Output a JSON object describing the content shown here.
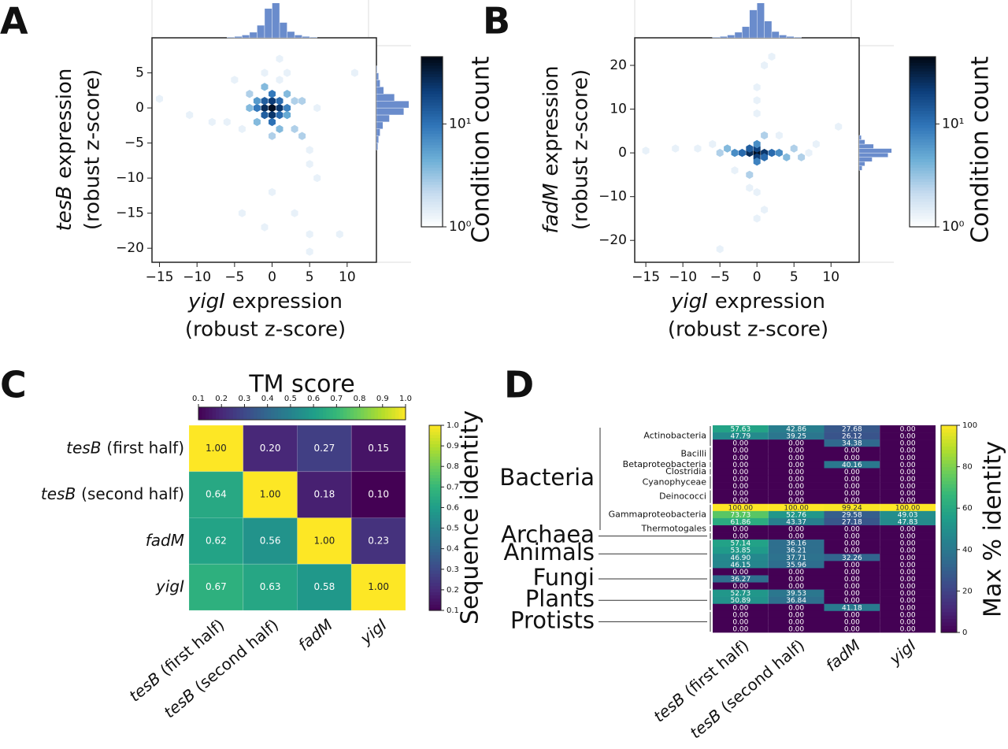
{
  "chart_data": [
    {
      "type": "hexbin",
      "panel": "A",
      "xlabel_gene": "yigI",
      "xlabel": "expression",
      "xlabel2": "(robust z-score)",
      "ylabel_gene": "tesB",
      "ylabel": "expression",
      "ylabel2": "(robust z-score)",
      "xlim": [
        -16,
        13.9
      ],
      "ylim": [
        -22,
        10
      ],
      "xticks": [
        {
          "value": -15,
          "label": "−15"
        },
        {
          "value": -10,
          "label": "−10"
        },
        {
          "value": -5,
          "label": "−5"
        },
        0,
        5,
        10
      ],
      "yticks": [
        5,
        0,
        {
          "value": -5,
          "label": "−5"
        },
        {
          "value": -10,
          "label": "−10"
        },
        {
          "value": -15,
          "label": "−15"
        },
        {
          "value": -20,
          "label": "−20"
        }
      ],
      "x": [
        0,
        -1,
        1,
        0,
        0,
        -1,
        1,
        -1,
        1,
        -2,
        2,
        0,
        0,
        -2,
        2,
        -3,
        3,
        -2,
        2,
        1,
        -1,
        0,
        3,
        -3,
        1,
        -1,
        2,
        4,
        5,
        5,
        6,
        -4,
        -6,
        -11,
        -15,
        11,
        0,
        3,
        5,
        5,
        9,
        -4,
        -1,
        -8,
        6,
        4,
        -5,
        1
      ],
      "y": [
        0,
        0,
        0,
        1,
        -1,
        1,
        1,
        -1,
        -1,
        0,
        0,
        2,
        -2,
        1,
        -1,
        0,
        1,
        -2,
        2,
        -3,
        3,
        -4,
        -3,
        2,
        4,
        5,
        5,
        -4,
        -6,
        -8,
        -10,
        -3,
        -2,
        -1,
        1.3,
        5,
        -12,
        -15,
        -18,
        -20.5,
        -18,
        -15,
        -17,
        -2,
        0,
        1,
        4,
        7
      ],
      "counts": [
        40,
        25,
        22,
        20,
        22,
        12,
        10,
        12,
        10,
        8,
        7,
        8,
        9,
        5,
        4,
        3,
        2,
        3,
        3,
        3,
        3,
        2,
        2,
        2,
        1,
        1,
        1,
        2,
        1,
        1,
        1,
        1,
        1,
        1,
        1,
        1,
        1,
        1,
        1,
        1,
        1,
        1,
        1,
        1,
        1,
        2,
        1,
        1
      ],
      "colorbar": {
        "label": "Condition count",
        "colormap": "Blues",
        "log": true,
        "clim": [
          1,
          45
        ],
        "ticks": [
          {
            "value": 1,
            "label": "10⁰"
          },
          {
            "value": 10,
            "label": "10¹"
          }
        ]
      },
      "hist_color": "#6a8ccc",
      "x_hist": {
        "bins": [
          -6,
          -5,
          -4,
          -3,
          -2,
          -1,
          0,
          1,
          2,
          3,
          4,
          5,
          6
        ],
        "counts": [
          1,
          2,
          4,
          8,
          18,
          42,
          50,
          22,
          9,
          4,
          2,
          1
        ],
        "ylim": [
          0,
          52
        ]
      },
      "y_hist": {
        "bins": [
          -6,
          -5,
          -4,
          -3,
          -2,
          -1,
          0,
          1,
          2,
          3,
          4,
          5,
          6
        ],
        "counts": [
          2,
          3,
          5,
          9,
          18,
          38,
          45,
          25,
          10,
          5,
          3,
          1
        ],
        "ylim": [
          0,
          48
        ]
      }
    },
    {
      "type": "hexbin",
      "panel": "B",
      "xlabel_gene": "yigI",
      "xlabel": "expression",
      "xlabel2": "(robust z-score)",
      "ylabel_gene": "fadM",
      "ylabel": "expression",
      "ylabel2": "(robust z-score)",
      "xlim": [
        -16.5,
        13.8
      ],
      "ylim": [
        -25,
        26.3
      ],
      "xticks": [
        {
          "value": -15,
          "label": "−15"
        },
        {
          "value": -10,
          "label": "−10"
        },
        {
          "value": -5,
          "label": "−5"
        },
        0,
        5,
        10
      ],
      "yticks": [
        20,
        10,
        0,
        {
          "value": -10,
          "label": "−10"
        },
        {
          "value": -20,
          "label": "−20"
        }
      ],
      "x": [
        0,
        -1,
        1,
        0,
        0,
        -2,
        2,
        -1,
        1,
        -3,
        3,
        0,
        0,
        -4,
        4,
        -5,
        5,
        -6,
        6,
        7,
        8,
        -8,
        -11,
        -15,
        11,
        -1,
        1,
        0,
        0,
        0,
        1,
        -5,
        2,
        1,
        0,
        0,
        -3,
        3,
        -1
      ],
      "y": [
        0,
        0,
        0,
        1,
        -1,
        0,
        0,
        1,
        -1,
        0,
        0,
        2,
        -2,
        1,
        -1,
        0,
        1,
        2,
        -1,
        0,
        2,
        1,
        1,
        0.5,
        6,
        -5,
        4,
        -9,
        9,
        -15,
        -13,
        -22,
        22,
        20,
        15,
        12,
        -4,
        4,
        -8
      ],
      "counts": [
        40,
        25,
        22,
        18,
        20,
        10,
        10,
        12,
        10,
        6,
        6,
        6,
        7,
        3,
        3,
        2,
        2,
        1,
        2,
        1,
        1,
        1,
        1,
        1,
        1,
        2,
        2,
        1,
        1,
        1,
        1,
        1,
        1,
        1,
        1,
        1,
        1,
        1,
        1
      ],
      "colorbar": {
        "label": "Condition count",
        "colormap": "Blues",
        "log": true,
        "clim": [
          1,
          45
        ],
        "ticks": [
          {
            "value": 1,
            "label": "10⁰"
          },
          {
            "value": 10,
            "label": "10¹"
          }
        ]
      },
      "hist_color": "#6a8ccc",
      "x_hist": {
        "bins": [
          -6,
          -5,
          -4,
          -3,
          -2,
          -1,
          0,
          1,
          2,
          3,
          4,
          5,
          6
        ],
        "counts": [
          1,
          2,
          4,
          8,
          16,
          40,
          50,
          24,
          9,
          4,
          2,
          1
        ],
        "ylim": [
          0,
          52
        ]
      },
      "y_hist": {
        "bins": [
          -4,
          -3,
          -2,
          -1,
          0,
          1,
          2,
          3,
          4
        ],
        "counts": [
          4,
          8,
          18,
          40,
          45,
          20,
          8,
          3
        ],
        "ylim": [
          0,
          48
        ]
      }
    },
    {
      "type": "heatmap",
      "panel": "C",
      "categories": [
        {
          "gene": "tesB",
          "suffix": "(first half)"
        },
        {
          "gene": "tesB",
          "suffix": "(second half)"
        },
        {
          "gene": "fadM"
        },
        {
          "gene": "yigI"
        }
      ],
      "values": [
        [
          1,
          0.2,
          0.27,
          0.15
        ],
        [
          0.64,
          1,
          0.18,
          0.1
        ],
        [
          0.62,
          0.56,
          1,
          0.23
        ],
        [
          0.67,
          0.63,
          0.58,
          1
        ]
      ],
      "value_labels": [
        [
          "1.00",
          "0.20",
          "0.27",
          "0.15"
        ],
        [
          "0.64",
          "1.00",
          "0.18",
          "0.10"
        ],
        [
          "0.62",
          "0.56",
          "1.00",
          "0.23"
        ],
        [
          "0.67",
          "0.63",
          "0.58",
          "1.00"
        ]
      ],
      "colormap": "viridis",
      "clim": [
        0.1,
        1.0
      ],
      "top_colorbar": {
        "label": "TM score",
        "ticks": [
          0.1,
          0.2,
          0.3,
          0.4,
          0.5,
          0.6,
          0.7,
          0.8,
          0.9,
          {
            "value": 1,
            "label": "1.0"
          }
        ]
      },
      "side_colorbar": {
        "label": "Sequence identity",
        "ticks": [
          0.1,
          0.2,
          0.3,
          0.4,
          0.5,
          0.6,
          0.7,
          0.8,
          0.9,
          {
            "value": 1,
            "label": "1.0"
          }
        ]
      }
    },
    {
      "type": "grouped_heatmap",
      "panel": "D",
      "categories": [
        {
          "gene": "tesB",
          "suffix": "(first half)"
        },
        {
          "gene": "tesB",
          "suffix": "(second half)"
        },
        {
          "gene": "fadM"
        },
        {
          "gene": "yigI"
        }
      ],
      "colormap": "viridis",
      "clim": [
        0,
        100
      ],
      "colorbar": {
        "label": "Max % identity",
        "ticks": [
          0,
          20,
          40,
          60,
          80,
          100
        ]
      },
      "groups": [
        {
          "name": "Bacteria",
          "subgroups": [
            {
              "name": "Actinobacteria",
              "values": [
                [
                  57.63,
                  42.86,
                  27.68,
                  0
                ],
                [
                  47.79,
                  39.25,
                  26.12,
                  0
                ],
                [
                  0,
                  0,
                  34.38,
                  0
                ]
              ],
              "value_labels": [
                [
                  "57.63",
                  "42.86",
                  "27.68",
                  "0.00"
                ],
                [
                  "47.79",
                  "39.25",
                  "26.12",
                  "0.00"
                ],
                [
                  "0.00",
                  "0.00",
                  "34.38",
                  "0.00"
                ]
              ]
            },
            {
              "name": "Bacilli",
              "values": [
                [
                  0,
                  0,
                  0,
                  0
                ],
                [
                  0,
                  0,
                  0,
                  0
                ]
              ],
              "value_labels": [
                [
                  "0.00",
                  "0.00",
                  "0.00",
                  "0.00"
                ],
                [
                  "0.00",
                  "0.00",
                  "0.00",
                  "0.00"
                ]
              ]
            },
            {
              "name": "Betaproteobacteria",
              "values": [
                [
                  0,
                  0,
                  40.16,
                  0
                ]
              ],
              "value_labels": [
                [
                  "0.00",
                  "0.00",
                  "40.16",
                  "0.00"
                ]
              ]
            },
            {
              "name": "Clostridia",
              "values": [
                [
                  0,
                  0,
                  0,
                  0
                ]
              ],
              "value_labels": [
                [
                  "0.00",
                  "0.00",
                  "0.00",
                  "0.00"
                ]
              ]
            },
            {
              "name": "Cyanophyceae",
              "values": [
                [
                  0,
                  0,
                  0,
                  0
                ],
                [
                  0,
                  0,
                  0,
                  0
                ]
              ],
              "value_labels": [
                [
                  "0.00",
                  "0.00",
                  "0.00",
                  "0.00"
                ],
                [
                  "0.00",
                  "0.00",
                  "0.00",
                  "0.00"
                ]
              ]
            },
            {
              "name": "Deinococci",
              "values": [
                [
                  0,
                  0,
                  0,
                  0
                ],
                [
                  0,
                  0,
                  0,
                  0
                ]
              ],
              "value_labels": [
                [
                  "0.00",
                  "0.00",
                  "0.00",
                  "0.00"
                ],
                [
                  "0.00",
                  "0.00",
                  "0.00",
                  "0.00"
                ]
              ]
            },
            {
              "name": "Gammaproteobacteria",
              "values": [
                [
                  100,
                  100,
                  99.24,
                  100
                ],
                [
                  73.73,
                  52.76,
                  29.58,
                  49.03
                ],
                [
                  61.86,
                  43.37,
                  27.18,
                  47.83
                ]
              ],
              "value_labels": [
                [
                  "100.00",
                  "100.00",
                  "99.24",
                  "100.00"
                ],
                [
                  "73.73",
                  "52.76",
                  "29.58",
                  "49.03"
                ],
                [
                  "61.86",
                  "43.37",
                  "27.18",
                  "47.83"
                ]
              ]
            },
            {
              "name": "Thermotogales",
              "values": [
                [
                  0,
                  0,
                  0,
                  0
                ]
              ],
              "value_labels": [
                [
                  "0.00",
                  "0.00",
                  "0.00",
                  "0.00"
                ]
              ]
            }
          ]
        },
        {
          "name": "Archaea",
          "values": [
            [
              0,
              0,
              0,
              0
            ]
          ],
          "value_labels": [
            [
              "0.00",
              "0.00",
              "0.00",
              "0.00"
            ]
          ]
        },
        {
          "name": "Animals",
          "values": [
            [
              57.14,
              36.16,
              0,
              0
            ],
            [
              53.85,
              36.21,
              0,
              0
            ],
            [
              46.9,
              37.71,
              32.26,
              0
            ],
            [
              46.15,
              35.96,
              0,
              0
            ]
          ],
          "value_labels": [
            [
              "57.14",
              "36.16",
              "0.00",
              "0.00"
            ],
            [
              "53.85",
              "36.21",
              "0.00",
              "0.00"
            ],
            [
              "46.90",
              "37.71",
              "32.26",
              "0.00"
            ],
            [
              "46.15",
              "35.96",
              "0.00",
              "0.00"
            ]
          ]
        },
        {
          "name": "Fungi",
          "values": [
            [
              0,
              0,
              0,
              0
            ],
            [
              36.27,
              0,
              0,
              0
            ],
            [
              0,
              0,
              0,
              0
            ]
          ],
          "value_labels": [
            [
              "0.00",
              "0.00",
              "0.00",
              "0.00"
            ],
            [
              "36.27",
              "0.00",
              "0.00",
              "0.00"
            ],
            [
              "0.00",
              "0.00",
              "0.00",
              "0.00"
            ]
          ]
        },
        {
          "name": "Plants",
          "values": [
            [
              52.73,
              39.53,
              0,
              0
            ],
            [
              50.89,
              36.84,
              0,
              0
            ],
            [
              0,
              0,
              41.18,
              0
            ]
          ],
          "value_labels": [
            [
              "52.73",
              "39.53",
              "0.00",
              "0.00"
            ],
            [
              "50.89",
              "36.84",
              "0.00",
              "0.00"
            ],
            [
              "0.00",
              "0.00",
              "41.18",
              "0.00"
            ]
          ]
        },
        {
          "name": "Protists",
          "values": [
            [
              0,
              0,
              0,
              0
            ],
            [
              0,
              0,
              0,
              0
            ],
            [
              0,
              0,
              0,
              0
            ]
          ],
          "value_labels": [
            [
              "0.00",
              "0.00",
              "0.00",
              "0.00"
            ],
            [
              "0.00",
              "0.00",
              "0.00",
              "0.00"
            ],
            [
              "0.00",
              "0.00",
              "0.00",
              "0.00"
            ]
          ]
        }
      ]
    }
  ]
}
